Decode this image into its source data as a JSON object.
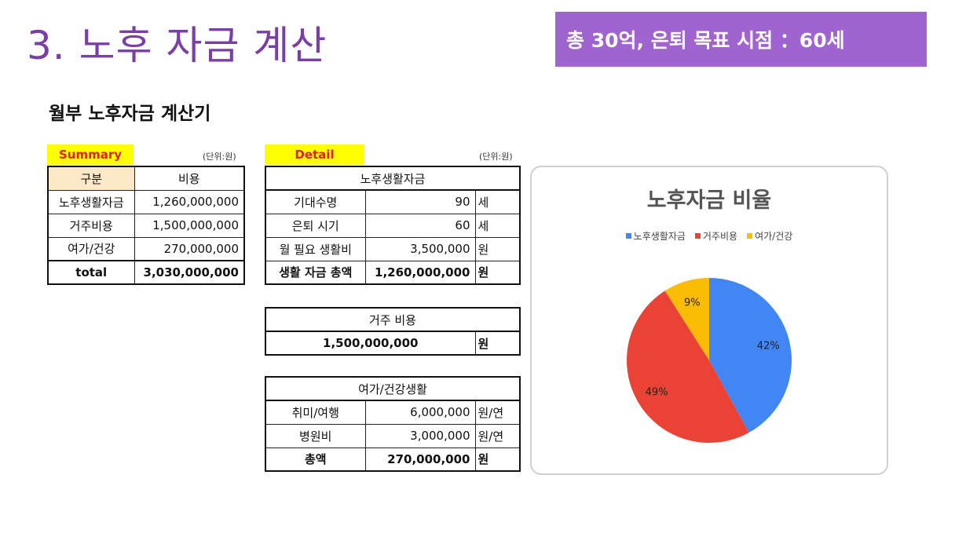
{
  "slide": {
    "title": "3. 노후 자금 계산",
    "goal_banner": "총 30억, 은퇴 목표 시점 ：60세",
    "calculator_title": "월부 노후자금 계산기"
  },
  "summary": {
    "tag": "Summary",
    "unit_note": "(단위:원)",
    "header": {
      "col1": "구분",
      "col2": "비용"
    },
    "rows": [
      {
        "label": "노후생활자금",
        "value": "1,260,000,000"
      },
      {
        "label": "거주비용",
        "value": "1,500,000,000"
      },
      {
        "label": "여가/건강",
        "value": "270,000,000"
      }
    ],
    "total": {
      "label": "total",
      "value": "3,030,000,000"
    }
  },
  "detail": {
    "tag": "Detail",
    "unit_note": "(단위:원)",
    "living": {
      "header": "노후생활자금",
      "rows": [
        {
          "label": "기대수명",
          "value": "90",
          "unit": "세"
        },
        {
          "label": "은퇴 시기",
          "value": "60",
          "unit": "세"
        },
        {
          "label": "월 필요 생활비",
          "value": "3,500,000",
          "unit": "원"
        }
      ],
      "total": {
        "label": "생활 자금 총액",
        "value": "1,260,000,000",
        "unit": "원"
      }
    },
    "housing": {
      "header": "거주 비용",
      "value": "1,500,000,000",
      "unit": "원"
    },
    "leisure": {
      "header": "여가/건강생활",
      "rows": [
        {
          "label": "취미/여행",
          "value": "6,000,000",
          "unit": "원/연"
        },
        {
          "label": "병원비",
          "value": "3,000,000",
          "unit": "원/연"
        }
      ],
      "total": {
        "label": "총액",
        "value": "270,000,000",
        "unit": "원"
      }
    }
  },
  "chart_data": {
    "type": "pie",
    "title": "노후자금 비율",
    "categories": [
      "노후생활자금",
      "거주비용",
      "여가/건강"
    ],
    "values": [
      42,
      49,
      9
    ],
    "data_labels": [
      "42%",
      "49%",
      "9%"
    ],
    "colors": [
      "#4285f4",
      "#ea4335",
      "#fbbc04"
    ],
    "legend_position": "top"
  }
}
